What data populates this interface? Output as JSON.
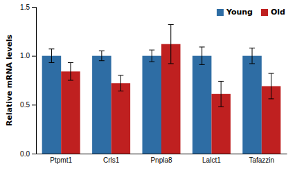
{
  "chart_data": {
    "type": "bar",
    "categories": [
      "Ptpmt1",
      "Crls1",
      "Pnpla8",
      "Lalct1",
      "Tafazzin"
    ],
    "series": [
      {
        "name": "Young",
        "color": "#2E6DA4",
        "values": [
          1.0,
          1.0,
          1.0,
          1.0,
          1.0
        ],
        "errors": [
          0.07,
          0.05,
          0.06,
          0.09,
          0.08
        ]
      },
      {
        "name": "Old",
        "color": "#BF2020",
        "values": [
          0.84,
          0.72,
          1.12,
          0.61,
          0.69
        ],
        "errors": [
          0.09,
          0.08,
          0.2,
          0.13,
          0.13
        ]
      }
    ],
    "ylabel": "Relative mRNA levels",
    "ylim": [
      0,
      1.5
    ],
    "yticks": [
      {
        "value": 0,
        "label": "0.0"
      },
      0.5,
      {
        "value": 1.0,
        "label": "1.0"
      },
      1.5
    ],
    "legend": "upper right"
  }
}
